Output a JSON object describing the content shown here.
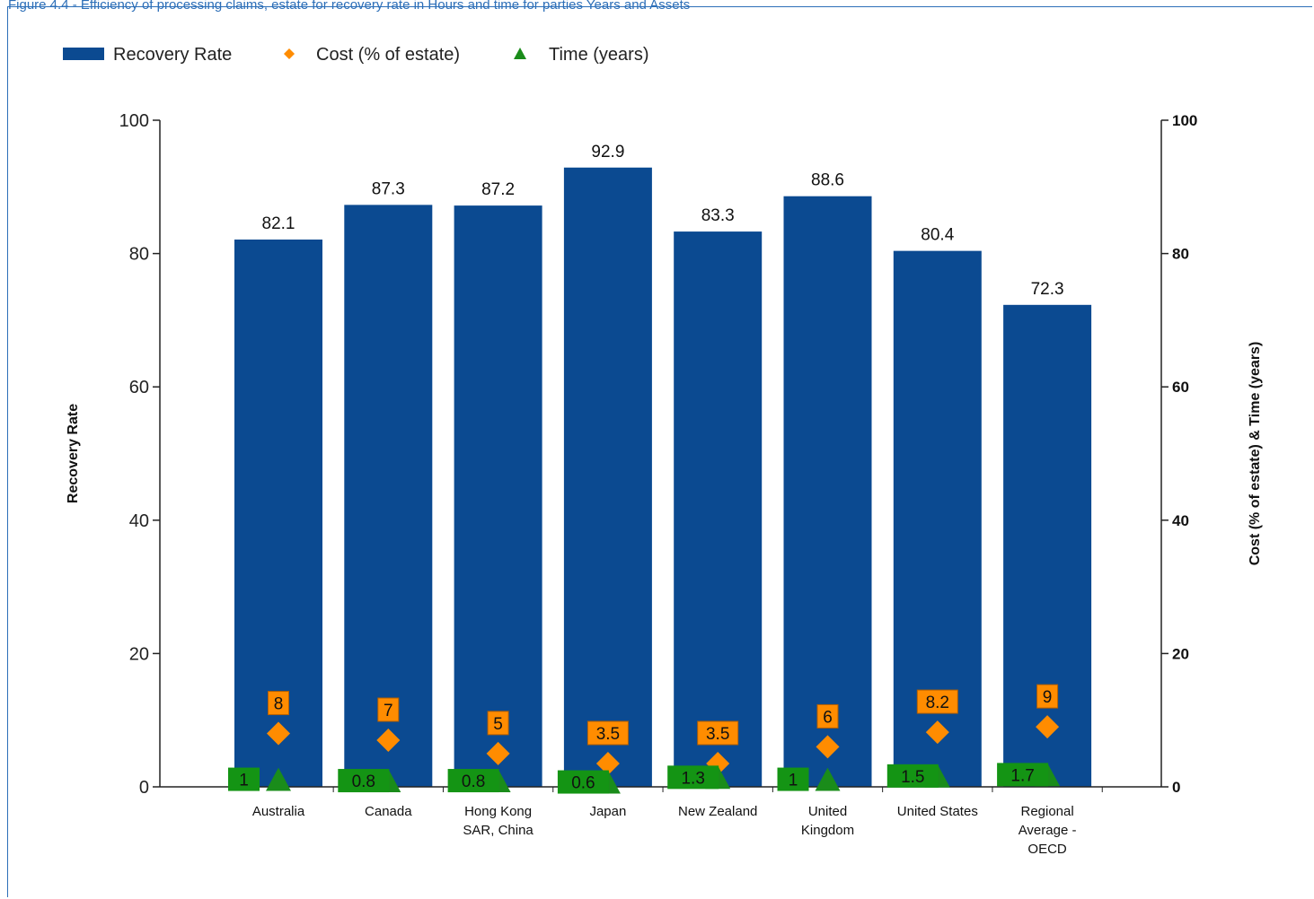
{
  "caption": "Figure 4.4 - Efficiency of processing claims, estate for recovery rate in Hours and time for parties Years and Assets",
  "colors": {
    "bar": "#0b4a91",
    "cost": "#ff8c00",
    "cost_label_bg": "#ff8c00",
    "time": "#1a8c1a",
    "time_label_bg": "#149414"
  },
  "chart_data": {
    "type": "bar",
    "categories": [
      "Australia",
      "Canada",
      "Hong Kong SAR, China",
      "Japan",
      "New Zealand",
      "United Kingdom",
      "United States",
      "Regional Average - OECD"
    ],
    "category_lines": [
      [
        "Australia"
      ],
      [
        "Canada"
      ],
      [
        "Hong Kong",
        "SAR, China"
      ],
      [
        "Japan"
      ],
      [
        "New Zealand"
      ],
      [
        "United",
        "Kingdom"
      ],
      [
        "United States"
      ],
      [
        "Regional",
        "Average -",
        "OECD"
      ]
    ],
    "series": [
      {
        "name": "Recovery Rate",
        "kind": "bar",
        "axis": "left",
        "values": [
          82.1,
          87.3,
          87.2,
          92.9,
          83.3,
          88.6,
          80.4,
          72.3
        ]
      },
      {
        "name": "Cost (% of estate)",
        "kind": "diamond-marker",
        "axis": "right",
        "values": [
          8,
          7,
          5,
          3.5,
          3.5,
          6,
          8.2,
          9
        ]
      },
      {
        "name": "Time (years)",
        "kind": "triangle-marker",
        "axis": "right",
        "values": [
          1,
          0.8,
          0.8,
          0.6,
          1.3,
          1,
          1.5,
          1.7
        ]
      }
    ],
    "ylabel": "Recovery Rate",
    "y2label": "Cost (% of estate) & Time (years)",
    "ylim": [
      0,
      100
    ],
    "y2lim": [
      0,
      100
    ],
    "yticks": [
      0,
      20,
      40,
      60,
      80,
      100
    ],
    "y2ticks": [
      0,
      20,
      40,
      60,
      80,
      100
    ],
    "legend": "top-left",
    "grid": false
  }
}
